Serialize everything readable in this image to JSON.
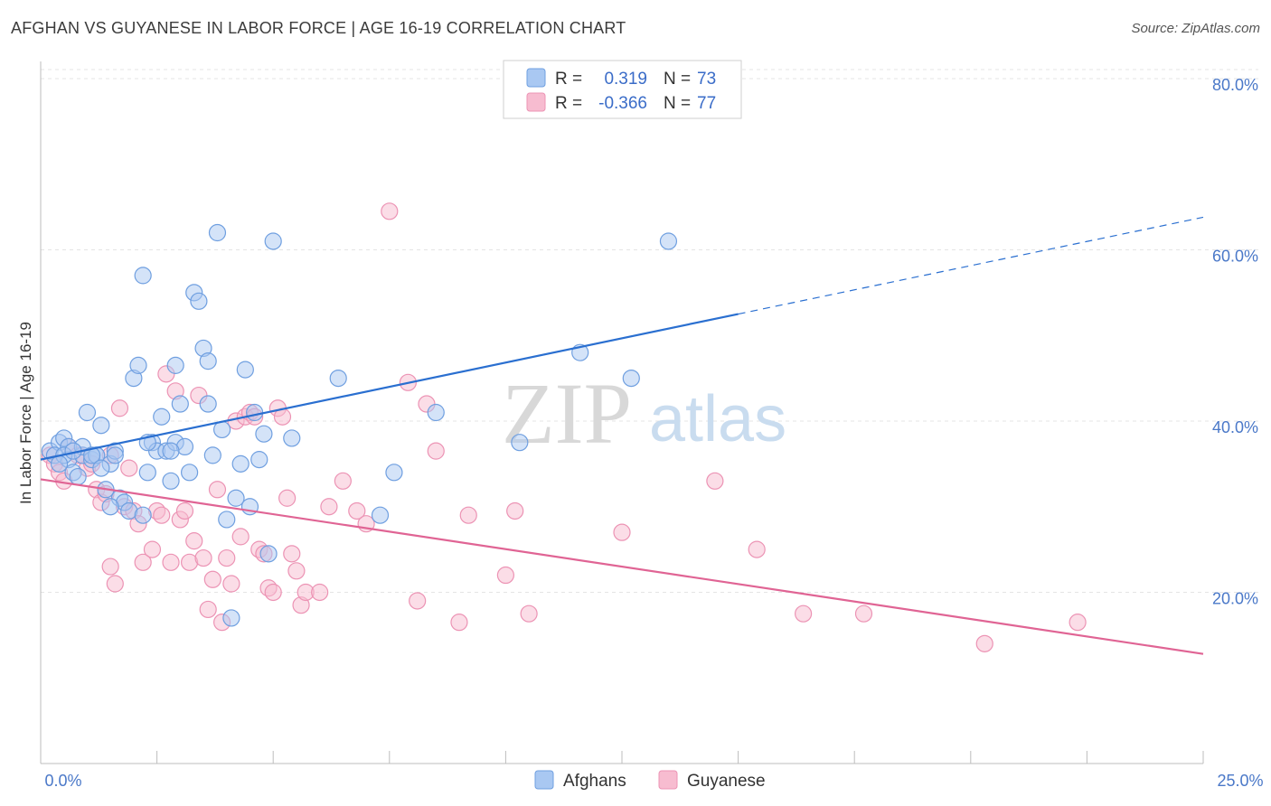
{
  "title": "AFGHAN VS GUYANESE IN LABOR FORCE | AGE 16-19 CORRELATION CHART",
  "source": "Source: ZipAtlas.com",
  "watermark": {
    "zip": "ZIP",
    "atlas": "atlas"
  },
  "colors": {
    "afghans_fill": "#a9c8f2",
    "afghans_stroke": "#6f9fe0",
    "afghans_line": "#2a6fd0",
    "guyanese_fill": "#f7bcd0",
    "guyanese_stroke": "#ec93b4",
    "guyanese_line": "#e06494",
    "grid": "#e4e4e4",
    "axis_text": "#4a78c8"
  },
  "legend": {
    "rows": [
      {
        "r_label": "R =",
        "r_value": "0.319",
        "n_label": "N =",
        "n_value": "73"
      },
      {
        "r_label": "R =",
        "r_value": "-0.366",
        "n_label": "N =",
        "n_value": "77"
      }
    ]
  },
  "bottom_legend": [
    "Afghans",
    "Guyanese"
  ],
  "chart_data": {
    "type": "scatter",
    "title": "AFGHAN VS GUYANESE IN LABOR FORCE | AGE 16-19 CORRELATION CHART",
    "xlabel": "",
    "ylabel": "In Labor Force | Age 16-19",
    "xlim": [
      0,
      25
    ],
    "ylim": [
      0,
      82
    ],
    "x_tick_labels": [
      "0.0%",
      "25.0%"
    ],
    "y_ticks": [
      20,
      40,
      60,
      80
    ],
    "y_tick_labels": [
      "20.0%",
      "40.0%",
      "60.0%",
      "80.0%"
    ],
    "grid": true,
    "series": [
      {
        "name": "Afghans",
        "r": 0.319,
        "n": 73,
        "trend": {
          "x0": 0,
          "y0": 35.5,
          "x1": 15,
          "y1": 52.5,
          "dash_to_x": 25,
          "dash_to_y": 63.8
        },
        "points": [
          [
            0.2,
            36.5
          ],
          [
            0.4,
            37.5
          ],
          [
            0.5,
            38
          ],
          [
            0.6,
            37
          ],
          [
            0.6,
            35.5
          ],
          [
            0.7,
            34
          ],
          [
            0.8,
            33.5
          ],
          [
            0.9,
            36
          ],
          [
            1,
            41
          ],
          [
            1.1,
            35.5
          ],
          [
            1.2,
            36
          ],
          [
            1.3,
            39.5
          ],
          [
            1.4,
            32
          ],
          [
            1.5,
            35
          ],
          [
            1.6,
            36.5
          ],
          [
            1.7,
            31
          ],
          [
            1.8,
            30.5
          ],
          [
            1.9,
            29.5
          ],
          [
            2,
            45
          ],
          [
            2.1,
            46.5
          ],
          [
            2.2,
            29
          ],
          [
            2.3,
            34
          ],
          [
            2.4,
            37.5
          ],
          [
            2.5,
            36.5
          ],
          [
            2.6,
            40.5
          ],
          [
            2.7,
            36.5
          ],
          [
            2.8,
            33
          ],
          [
            2.9,
            37.5
          ],
          [
            3,
            42
          ],
          [
            3.1,
            37
          ],
          [
            3.2,
            34
          ],
          [
            3.3,
            55
          ],
          [
            3.4,
            54
          ],
          [
            3.5,
            48.5
          ],
          [
            3.6,
            42
          ],
          [
            3.7,
            36
          ],
          [
            3.8,
            62
          ],
          [
            3.9,
            39
          ],
          [
            4,
            28.5
          ],
          [
            4.1,
            17
          ],
          [
            4.2,
            31
          ],
          [
            4.3,
            35
          ],
          [
            4.4,
            46
          ],
          [
            4.5,
            30
          ],
          [
            4.6,
            41
          ],
          [
            4.7,
            35.5
          ],
          [
            4.8,
            38.5
          ],
          [
            4.9,
            24.5
          ],
          [
            5,
            61
          ],
          [
            5.4,
            38
          ],
          [
            6.4,
            45
          ],
          [
            7.3,
            29
          ],
          [
            7.6,
            34
          ],
          [
            8.5,
            41
          ],
          [
            10.3,
            37.5
          ],
          [
            11.6,
            48
          ],
          [
            12.7,
            45
          ],
          [
            13.5,
            61
          ],
          [
            2.2,
            57
          ],
          [
            1.6,
            36
          ],
          [
            0.3,
            36
          ],
          [
            0.9,
            37
          ],
          [
            1.2,
            36
          ],
          [
            2.8,
            36.5
          ],
          [
            3.6,
            47
          ],
          [
            1.1,
            36
          ],
          [
            0.5,
            36
          ],
          [
            0.7,
            36.5
          ],
          [
            1.3,
            34.5
          ],
          [
            2.3,
            37.5
          ],
          [
            2.9,
            46.5
          ],
          [
            0.4,
            35
          ],
          [
            1.5,
            30
          ]
        ]
      },
      {
        "name": "Guyanese",
        "r": -0.366,
        "n": 77,
        "trend": {
          "x0": 0,
          "y0": 33.2,
          "x1": 25,
          "y1": 12.8
        },
        "points": [
          [
            0.2,
            36
          ],
          [
            0.3,
            35
          ],
          [
            0.4,
            34
          ],
          [
            0.5,
            33
          ],
          [
            0.6,
            37
          ],
          [
            0.8,
            36
          ],
          [
            1,
            34.5
          ],
          [
            1.1,
            35
          ],
          [
            1.2,
            32
          ],
          [
            1.3,
            30.5
          ],
          [
            1.4,
            31.5
          ],
          [
            1.5,
            23
          ],
          [
            1.6,
            21
          ],
          [
            1.7,
            41.5
          ],
          [
            1.8,
            30
          ],
          [
            1.9,
            34.5
          ],
          [
            2,
            29.5
          ],
          [
            2.1,
            28
          ],
          [
            2.2,
            23.5
          ],
          [
            2.4,
            25
          ],
          [
            2.5,
            29.5
          ],
          [
            2.6,
            29
          ],
          [
            2.7,
            45.5
          ],
          [
            2.8,
            23.5
          ],
          [
            2.9,
            43.5
          ],
          [
            3,
            28.5
          ],
          [
            3.1,
            29.5
          ],
          [
            3.2,
            23.5
          ],
          [
            3.3,
            26
          ],
          [
            3.4,
            43
          ],
          [
            3.5,
            24
          ],
          [
            3.6,
            18
          ],
          [
            3.7,
            21.5
          ],
          [
            3.8,
            32
          ],
          [
            3.9,
            16.5
          ],
          [
            4,
            24
          ],
          [
            4.1,
            21
          ],
          [
            4.2,
            40
          ],
          [
            4.3,
            26.5
          ],
          [
            4.4,
            40.5
          ],
          [
            4.5,
            41
          ],
          [
            4.6,
            40.5
          ],
          [
            4.7,
            25
          ],
          [
            4.8,
            24.5
          ],
          [
            4.9,
            20.5
          ],
          [
            5,
            20
          ],
          [
            5.1,
            41.5
          ],
          [
            5.2,
            40.5
          ],
          [
            5.3,
            31
          ],
          [
            5.4,
            24.5
          ],
          [
            5.5,
            22.5
          ],
          [
            5.6,
            18.5
          ],
          [
            5.7,
            20
          ],
          [
            6,
            20
          ],
          [
            6.2,
            30
          ],
          [
            6.5,
            33
          ],
          [
            6.8,
            29.5
          ],
          [
            7,
            28
          ],
          [
            7.5,
            64.5
          ],
          [
            7.9,
            44.5
          ],
          [
            8.1,
            19
          ],
          [
            8.3,
            42
          ],
          [
            8.5,
            36.5
          ],
          [
            9,
            16.5
          ],
          [
            9.2,
            29
          ],
          [
            10,
            22
          ],
          [
            10.2,
            29.5
          ],
          [
            10.5,
            17.5
          ],
          [
            12.5,
            27
          ],
          [
            14.5,
            33
          ],
          [
            15.4,
            25
          ],
          [
            17.7,
            17.5
          ],
          [
            22.3,
            16.5
          ],
          [
            20.3,
            14
          ],
          [
            16.4,
            17.5
          ],
          [
            0.9,
            36
          ],
          [
            1.5,
            36
          ]
        ]
      }
    ]
  }
}
